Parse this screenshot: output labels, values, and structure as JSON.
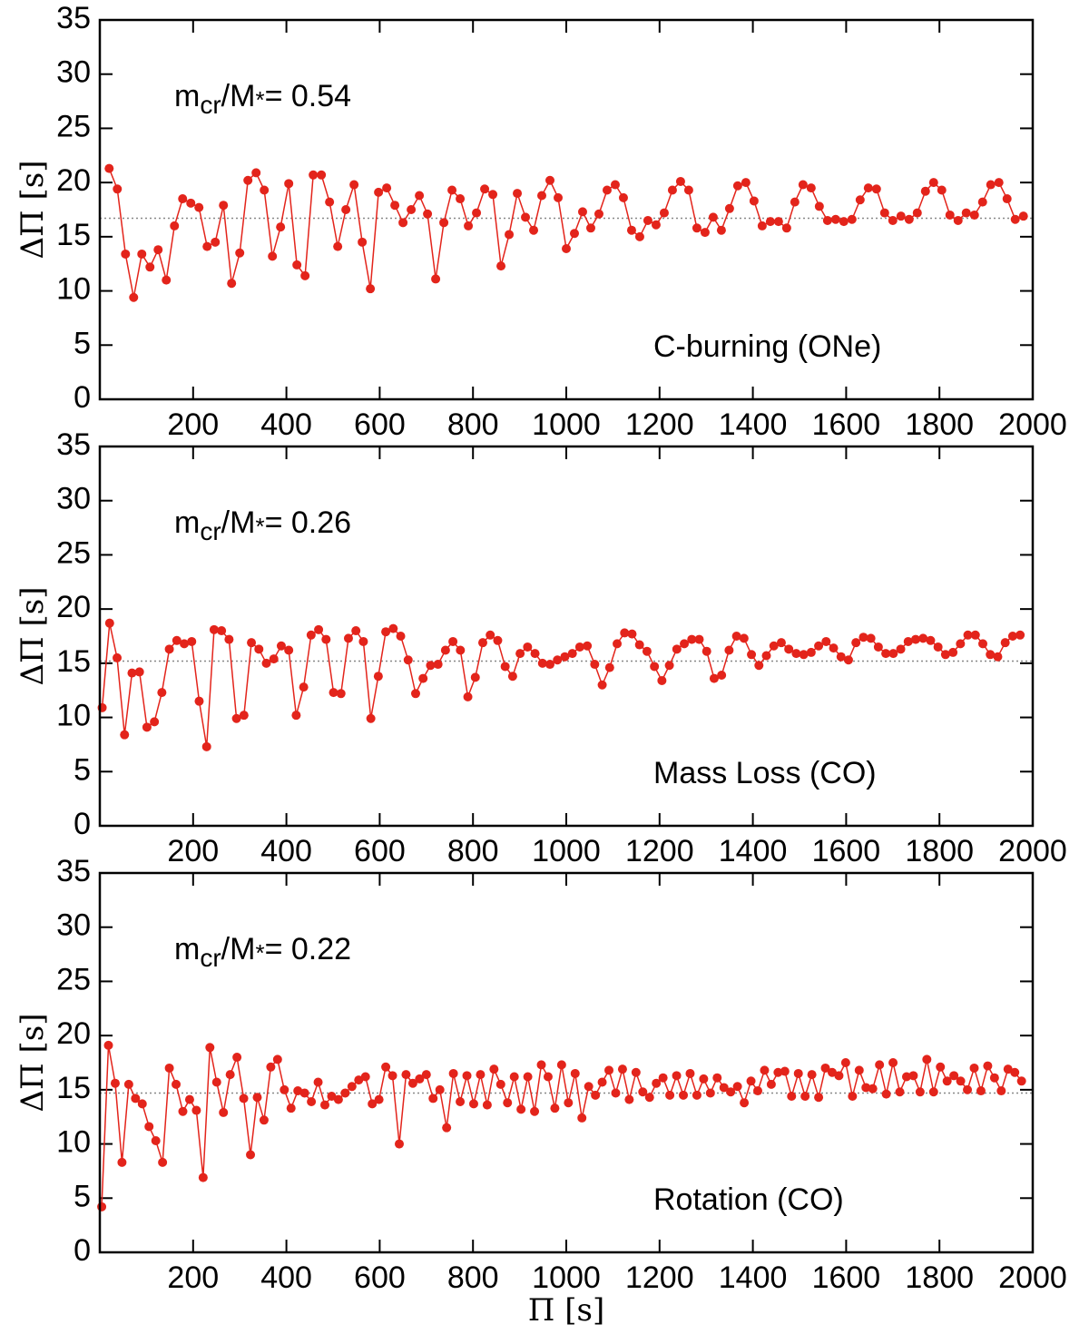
{
  "chart_data": [
    {
      "type": "line",
      "annotation": [
        "m",
        "cr",
        "/M",
        "*",
        "= 0.54"
      ],
      "model": "C-burning (ONe)",
      "ylabel": "ΔΠ [s]",
      "color": "#e3241b",
      "reference_line": 16.7,
      "xlim": [
        0,
        2000
      ],
      "ylim": [
        0,
        35
      ],
      "xticks": [
        200,
        400,
        600,
        800,
        1000,
        1200,
        1400,
        1600,
        1800,
        2000
      ],
      "yticks": [
        0,
        5,
        10,
        15,
        20,
        25,
        30,
        35
      ],
      "x": [
        20,
        37.5,
        55,
        72.5,
        90,
        107.5,
        125,
        142.5,
        160,
        177.5,
        195,
        212.5,
        230,
        247.5,
        265,
        282.5,
        300,
        317.5,
        335,
        352.5,
        370,
        387.5,
        405,
        422.5,
        440,
        457.5,
        475,
        492.5,
        510,
        527.5,
        545,
        562.5,
        580,
        597.5,
        615,
        632.5,
        650,
        667.5,
        685,
        702.5,
        720,
        737.5,
        755,
        772.5,
        790,
        807.5,
        825,
        842.5,
        860,
        877.5,
        895,
        912.5,
        930,
        947.5,
        965,
        982.5,
        1000,
        1017.5,
        1035,
        1052.5,
        1070,
        1087.5,
        1105,
        1122.5,
        1140,
        1157.5,
        1175,
        1192.5,
        1210,
        1227.5,
        1245,
        1262.5,
        1280,
        1297.5,
        1315,
        1332.5,
        1350,
        1367.5,
        1385,
        1402.5,
        1420,
        1437.5,
        1455,
        1472.5,
        1490,
        1507.5,
        1525,
        1542.5,
        1560,
        1577.5,
        1595,
        1612.5,
        1630,
        1647.5,
        1665,
        1682.5,
        1700,
        1717.5,
        1735,
        1752.5,
        1770,
        1787.5,
        1805,
        1822.5,
        1840,
        1857.5,
        1875,
        1892.5,
        1910,
        1927.5,
        1945,
        1962.5,
        1980
      ],
      "values": [
        21.3,
        19.4,
        13.4,
        9.4,
        13.4,
        12.2,
        13.8,
        11,
        16,
        18.5,
        18.1,
        17.7,
        14.1,
        14.5,
        17.9,
        10.7,
        13.5,
        20.2,
        20.9,
        19.3,
        13.2,
        15.9,
        19.9,
        12.4,
        11.4,
        20.7,
        20.7,
        18.2,
        14.1,
        17.5,
        19.8,
        14.5,
        10.2,
        19.1,
        19.5,
        17.9,
        16.3,
        17.5,
        18.8,
        17.1,
        11.1,
        16.3,
        19.3,
        18.5,
        16,
        17.2,
        19.4,
        18.9,
        12.3,
        15.2,
        19,
        16.8,
        15.6,
        18.8,
        20.2,
        18.6,
        13.9,
        15.3,
        17.3,
        15.8,
        17.1,
        19.3,
        19.8,
        18.6,
        15.6,
        15,
        16.5,
        16.1,
        17.2,
        19.3,
        20.1,
        19.3,
        15.8,
        15.4,
        16.8,
        15.6,
        17.6,
        19.7,
        20,
        18.3,
        16,
        16.4,
        16.4,
        15.8,
        18.2,
        19.8,
        19.5,
        17.8,
        16.5,
        16.6,
        16.4,
        16.6,
        18.4,
        19.5,
        19.4,
        17.2,
        16.5,
        16.9,
        16.6,
        17.2,
        19.2,
        20,
        19.3,
        17,
        16.5,
        17.2,
        17,
        18.2,
        19.8,
        20,
        18.5,
        16.6,
        16.9
      ]
    },
    {
      "type": "line",
      "annotation": [
        "m",
        "cr",
        "/M",
        "*",
        "= 0.26"
      ],
      "model": "Mass Loss (CO)",
      "ylabel": "ΔΠ [s]",
      "color": "#e3241b",
      "reference_line": 15.2,
      "xlim": [
        0,
        2000
      ],
      "ylim": [
        0,
        35
      ],
      "xticks": [
        200,
        400,
        600,
        800,
        1000,
        1200,
        1400,
        1600,
        1800,
        2000
      ],
      "yticks": [
        0,
        5,
        10,
        15,
        20,
        25,
        30,
        35
      ],
      "x": [
        5,
        21,
        37,
        53,
        69,
        85,
        101,
        117,
        133,
        149,
        165,
        181,
        197,
        213,
        229,
        245,
        261,
        277,
        293,
        309,
        325,
        341,
        357,
        373,
        389,
        405,
        421,
        437,
        453,
        469,
        485,
        501,
        517,
        533,
        549,
        565,
        581,
        597,
        613,
        629,
        645,
        661,
        677,
        693,
        709,
        725,
        741,
        757,
        773,
        789,
        805,
        821,
        837,
        853,
        869,
        885,
        901,
        917,
        933,
        949,
        965,
        981,
        997,
        1013,
        1029,
        1045,
        1061,
        1077,
        1093,
        1109,
        1125,
        1141,
        1157,
        1173,
        1189,
        1205,
        1221,
        1237,
        1253,
        1269,
        1285,
        1301,
        1317,
        1333,
        1349,
        1365,
        1381,
        1397,
        1413,
        1429,
        1445,
        1461,
        1477,
        1493,
        1509,
        1525,
        1541,
        1557,
        1573,
        1589,
        1605,
        1621,
        1637,
        1653,
        1669,
        1685,
        1701,
        1717,
        1733,
        1749,
        1765,
        1781,
        1797,
        1813,
        1829,
        1845,
        1861,
        1877,
        1893,
        1909,
        1925,
        1941,
        1957,
        1973
      ],
      "values": [
        10.9,
        18.7,
        15.5,
        8.4,
        14.1,
        14.2,
        9.1,
        9.6,
        12.3,
        16.3,
        17.1,
        16.8,
        17,
        11.5,
        7.3,
        18.1,
        18,
        17.2,
        9.9,
        10.2,
        16.9,
        16.3,
        15,
        15.4,
        16.6,
        16.2,
        10.2,
        12.8,
        17.6,
        18.1,
        17.2,
        12.3,
        12.2,
        17.3,
        18,
        17,
        9.9,
        13.8,
        17.9,
        18.2,
        17.5,
        15.3,
        12.2,
        13.6,
        14.8,
        14.9,
        16.2,
        17,
        16.2,
        11.9,
        13.7,
        16.9,
        17.6,
        17.1,
        14.7,
        13.8,
        15.9,
        16.5,
        15.9,
        15,
        14.9,
        15.3,
        15.6,
        15.9,
        16.5,
        16.6,
        14.9,
        13,
        14.6,
        16.8,
        17.8,
        17.7,
        16.7,
        16.1,
        14.7,
        13.4,
        14.8,
        16.3,
        16.8,
        17.2,
        17.2,
        16.1,
        13.6,
        13.9,
        16.2,
        17.5,
        17.3,
        15.8,
        14.8,
        15.7,
        16.6,
        16.9,
        16.3,
        15.9,
        15.8,
        16,
        16.6,
        17,
        16.4,
        15.6,
        15.3,
        16.9,
        17.4,
        17.3,
        16.5,
        15.9,
        15.9,
        16.3,
        17,
        17.2,
        17.3,
        17.1,
        16.5,
        15.8,
        16,
        16.8,
        17.6,
        17.6,
        16.8,
        15.8,
        15.6,
        16.9,
        17.5,
        17.6
      ]
    },
    {
      "type": "line",
      "annotation": [
        "m",
        "cr",
        "/M",
        "*",
        "= 0.22"
      ],
      "model": "Rotation (CO)",
      "ylabel": "ΔΠ [s]",
      "xlabel": "Π [s]",
      "color": "#e3241b",
      "reference_line": 14.7,
      "xlim": [
        0,
        2000
      ],
      "ylim": [
        0,
        35
      ],
      "xticks": [
        200,
        400,
        600,
        800,
        1000,
        1200,
        1400,
        1600,
        1800,
        2000
      ],
      "yticks": [
        0,
        5,
        10,
        15,
        20,
        25,
        30,
        35
      ],
      "x": [
        4,
        18.5,
        33,
        47.5,
        62,
        76.5,
        91,
        105.5,
        120,
        134.5,
        149,
        163.5,
        178,
        192.5,
        207,
        221.5,
        236,
        250.5,
        265,
        279.5,
        294,
        308.5,
        323,
        337.5,
        352,
        366.5,
        381,
        395.5,
        410,
        424.5,
        439,
        453.5,
        468,
        482.5,
        497,
        511.5,
        526,
        540.5,
        555,
        569.5,
        584,
        598.5,
        613,
        627.5,
        642,
        656.5,
        671,
        685.5,
        700,
        714.5,
        729,
        743.5,
        758,
        772.5,
        787,
        801.5,
        816,
        830.5,
        845,
        859.5,
        874,
        888.5,
        903,
        917.5,
        932,
        946.5,
        961,
        975.5,
        990,
        1004.5,
        1019,
        1033.5,
        1048,
        1062.5,
        1077,
        1091.5,
        1106,
        1120.5,
        1135,
        1149.5,
        1164,
        1178.5,
        1193,
        1207.5,
        1222,
        1236.5,
        1251,
        1265.5,
        1280,
        1294.5,
        1309,
        1323.5,
        1338,
        1352.5,
        1367,
        1381.5,
        1396,
        1410.5,
        1425,
        1439.5,
        1454,
        1468.5,
        1483,
        1497.5,
        1512,
        1526.5,
        1541,
        1555.5,
        1570,
        1584.5,
        1599,
        1613.5,
        1628,
        1642.5,
        1657,
        1671.5,
        1686,
        1700.5,
        1715,
        1729.5,
        1744,
        1758.5,
        1773,
        1787.5,
        1802,
        1816.5,
        1831,
        1845.5,
        1860,
        1874.5,
        1889,
        1903.5,
        1918,
        1932.5,
        1947,
        1961.5,
        1976
      ],
      "values": [
        4.2,
        19.1,
        15.6,
        8.3,
        15.5,
        14.2,
        13.7,
        11.6,
        10.3,
        8.3,
        17,
        15.5,
        13,
        14.1,
        13.1,
        6.9,
        18.9,
        15.7,
        12.9,
        16.4,
        18,
        14.2,
        9,
        14.3,
        12.2,
        17.1,
        17.8,
        15,
        13.3,
        14.9,
        14.7,
        13.9,
        15.7,
        13.6,
        14.4,
        14.1,
        14.7,
        15.3,
        15.9,
        16.2,
        13.7,
        14.1,
        17.1,
        16.3,
        10,
        16.4,
        15.6,
        16,
        16.4,
        14.2,
        15,
        11.5,
        16.5,
        13.9,
        16.3,
        13.7,
        16.4,
        13.6,
        16.9,
        15.5,
        13.8,
        16.2,
        13.2,
        16.2,
        13,
        17.3,
        16.2,
        13.3,
        17.3,
        13.8,
        16.5,
        12.4,
        15.3,
        14.5,
        15.7,
        16.8,
        14.7,
        16.9,
        14.1,
        16.6,
        14.8,
        14.3,
        15.6,
        16.1,
        14.5,
        16.3,
        14.5,
        16.5,
        14.5,
        16,
        14.7,
        16.1,
        15.2,
        14.8,
        15.3,
        13.8,
        15.8,
        14.9,
        16.8,
        15.5,
        16.6,
        16.7,
        14.4,
        16.5,
        14.4,
        16.4,
        14.3,
        17,
        16.6,
        16.3,
        17.5,
        14.4,
        16.8,
        15.2,
        15.1,
        17.3,
        14.6,
        17.5,
        14.8,
        16.2,
        16.3,
        14.8,
        17.8,
        14.8,
        17.1,
        15.8,
        16.3,
        15.8,
        15,
        17,
        14.9,
        17.2,
        16.1,
        14.9,
        16.9,
        16.6,
        15.8
      ]
    }
  ]
}
